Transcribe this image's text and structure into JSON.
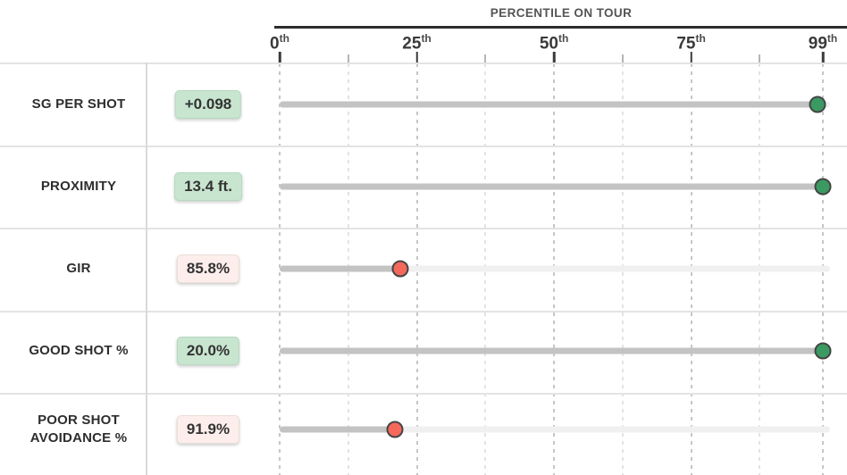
{
  "header": {
    "title": "PERCENTILE ON TOUR"
  },
  "axis": {
    "min": 0,
    "max": 99,
    "major_ticks": [
      {
        "value": 0,
        "num": "0",
        "suffix": "th"
      },
      {
        "value": 25,
        "num": "25",
        "suffix": "th"
      },
      {
        "value": 50,
        "num": "50",
        "suffix": "th"
      },
      {
        "value": 75,
        "num": "75",
        "suffix": "th"
      },
      {
        "value": 99,
        "num": "99",
        "suffix": "th"
      }
    ],
    "minor_tick_values": [
      12.5,
      37.5,
      62.5,
      87.5
    ]
  },
  "rows": [
    {
      "label_lines": [
        "SG PER SHOT"
      ],
      "value": "+0.098",
      "status": "positive",
      "percentile": 98
    },
    {
      "label_lines": [
        "PROXIMITY"
      ],
      "value": "13.4 ft.",
      "status": "positive",
      "percentile": 99
    },
    {
      "label_lines": [
        "GIR"
      ],
      "value": "85.8%",
      "status": "negative",
      "percentile": 22
    },
    {
      "label_lines": [
        "GOOD SHOT %"
      ],
      "value": "20.0%",
      "status": "positive",
      "percentile": 99
    },
    {
      "label_lines": [
        "POOR SHOT",
        "AVOIDANCE %"
      ],
      "value": "91.9%",
      "status": "negative",
      "percentile": 21
    }
  ],
  "colors": {
    "positive_dot": "#3a9a61",
    "negative_dot": "#f5685c",
    "dot_border": "#454545",
    "positive_badge_bg": "#c8e5cf",
    "positive_badge_border": "#b7d7c0",
    "negative_badge_bg": "#fdeeec",
    "negative_badge_border": "#eaded9",
    "bar_fill": "#c3c3c3",
    "bar_track": "#f0f0f0"
  },
  "chart_data": {
    "type": "scatter",
    "variant": "lollipop-percentile-dot-plot",
    "title": "PERCENTILE ON TOUR",
    "categories": [
      "SG PER SHOT",
      "PROXIMITY",
      "GIR",
      "GOOD SHOT %",
      "POOR SHOT AVOIDANCE %"
    ],
    "series": [
      {
        "name": "percentile on tour",
        "values": [
          98,
          99,
          22,
          99,
          21
        ]
      }
    ],
    "value_labels": [
      "+0.098",
      "13.4 ft.",
      "85.8%",
      "20.0%",
      "91.9%"
    ],
    "point_status": [
      "positive",
      "positive",
      "negative",
      "positive",
      "negative"
    ],
    "point_colors": [
      "#3a9a61",
      "#3a9a61",
      "#f5685c",
      "#3a9a61",
      "#f5685c"
    ],
    "xlabel": "PERCENTILE ON TOUR",
    "ylabel": "",
    "x_tick_labels": [
      "0th",
      "25th",
      "50th",
      "75th",
      "99th"
    ],
    "x_tick_values": [
      0,
      25,
      50,
      75,
      99
    ],
    "xlim": [
      0,
      99
    ],
    "grid": "dashed-vertical",
    "legend": "none"
  }
}
